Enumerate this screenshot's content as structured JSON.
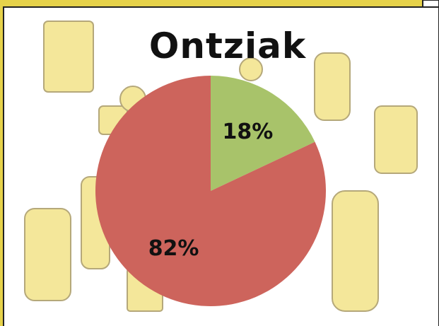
{
  "chart_data": {
    "type": "pie",
    "title": "Ontziak",
    "values": [
      18,
      82
    ],
    "value_labels": [
      "18%",
      "82%"
    ],
    "colors": [
      "#a8c36a",
      "#cd645c"
    ]
  }
}
